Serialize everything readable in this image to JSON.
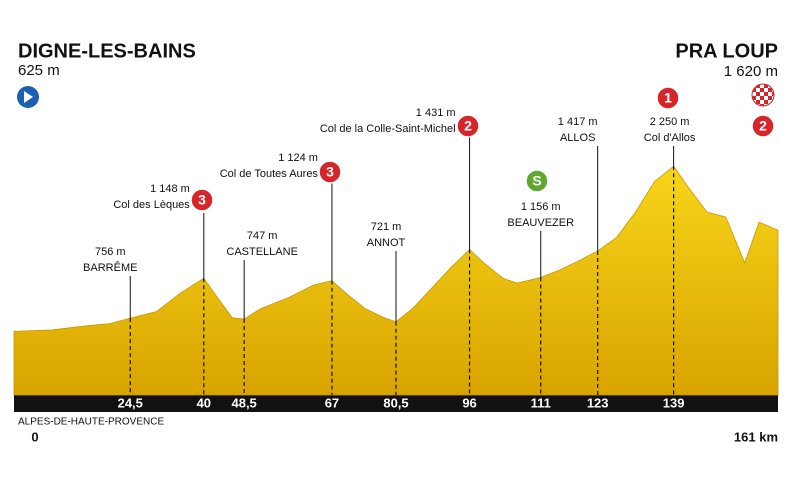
{
  "chart_data": {
    "type": "area",
    "start": {
      "name": "DIGNE-LES-BAINS",
      "altitude": {
        "value": 625,
        "label": "625 m"
      }
    },
    "finish": {
      "name": "PRA LOUP",
      "altitude": {
        "value": 1620,
        "label": "1 620 m"
      },
      "category": "2"
    },
    "region": "ALPES-DE-HAUTE-PROVENCE",
    "xlim": [
      0,
      161
    ],
    "ylim": [
      0,
      2400
    ],
    "xticks": [
      0,
      {
        "value": 24.5,
        "label": "24,5"
      },
      40,
      {
        "value": 48.5,
        "label": "48,5"
      },
      67,
      {
        "value": 80.5,
        "label": "80,5"
      },
      96,
      111,
      123,
      139,
      {
        "value": 161,
        "label": "161 km"
      }
    ],
    "x": [
      0,
      8,
      15,
      20,
      24.5,
      30,
      35,
      40,
      43,
      46,
      48.5,
      52,
      58,
      63,
      67,
      70,
      74,
      78,
      80.5,
      84,
      88,
      92,
      96,
      99,
      103,
      106,
      111,
      115,
      119,
      123,
      127,
      131,
      135,
      139,
      142,
      146,
      150,
      154,
      157,
      161
    ],
    "values": [
      625,
      640,
      680,
      700,
      756,
      820,
      1000,
      1148,
      950,
      760,
      747,
      850,
      960,
      1080,
      1124,
      1000,
      850,
      760,
      721,
      850,
      1050,
      1250,
      1431,
      1300,
      1150,
      1100,
      1156,
      1230,
      1320,
      1417,
      1550,
      1800,
      2100,
      2250,
      2050,
      1800,
      1750,
      1300,
      1700,
      1620
    ],
    "color": "#f2c500",
    "waypoints": [
      {
        "name": "BARRÊME",
        "altitude": {
          "value": 756,
          "label": "756 m"
        }
      },
      {
        "name": "Col des Lèques",
        "altitude": {
          "value": 1148,
          "label": "1 148 m"
        },
        "category": "3"
      },
      {
        "name": "CASTELLANE",
        "altitude": {
          "value": 747,
          "label": "747 m"
        }
      },
      {
        "name": "Col de Toutes Aures",
        "altitude": {
          "value": 1124,
          "label": "1 124 m"
        },
        "category": "3"
      },
      {
        "name": "ANNOT",
        "altitude": {
          "value": 721,
          "label": "721 m"
        }
      },
      {
        "name": "Col de la Colle-Saint-Michel",
        "altitude": {
          "value": 1431,
          "label": "1 431 m"
        },
        "category": "2"
      },
      {
        "name": "BEAUVEZER",
        "altitude": {
          "value": 1156,
          "label": "1 156 m"
        },
        "category": "S"
      },
      {
        "name": "ALLOS",
        "altitude": {
          "value": 1417,
          "label": "1 417 m"
        }
      },
      {
        "name": "Col d'Allos",
        "altitude": {
          "value": 2250,
          "label": "2 250 m"
        },
        "category": "1"
      }
    ]
  }
}
